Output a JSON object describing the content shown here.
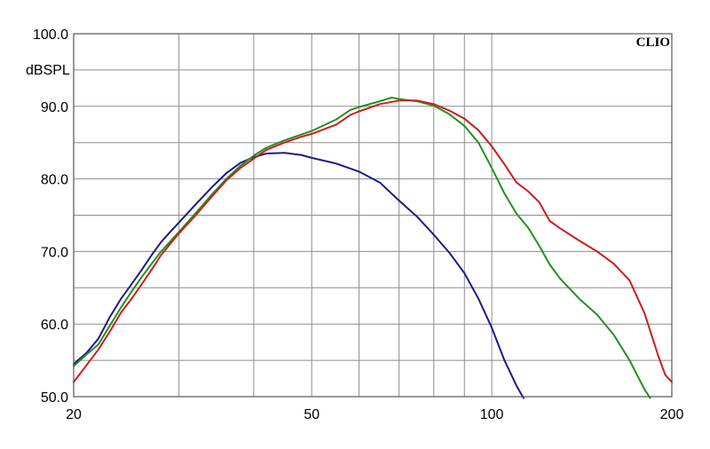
{
  "chart_data": {
    "type": "line",
    "brand": "CLIO",
    "ylabel": "dBSPL",
    "xscale": "log",
    "xlim": [
      20,
      200
    ],
    "ylim": [
      50,
      100
    ],
    "grid": true,
    "x_ticks": [
      20,
      30,
      40,
      50,
      60,
      70,
      80,
      90,
      100,
      200
    ],
    "x_tick_labels": [
      {
        "value": 20,
        "label": "20"
      },
      {
        "value": 50,
        "label": "50"
      },
      {
        "value": 100,
        "label": "100"
      },
      {
        "value": 200,
        "label": "200"
      }
    ],
    "y_tick_labels": [
      {
        "value": 100,
        "label": "100.0"
      },
      {
        "value": 90,
        "label": "90.0"
      },
      {
        "value": 80,
        "label": "80.0"
      },
      {
        "value": 70,
        "label": "70.0"
      },
      {
        "value": 60,
        "label": "60.0"
      },
      {
        "value": 50,
        "label": "50.0"
      }
    ],
    "series": [
      {
        "color": "#1c1c86",
        "points": [
          [
            20,
            54.5
          ],
          [
            21,
            56
          ],
          [
            22,
            58
          ],
          [
            23,
            61
          ],
          [
            24,
            63.5
          ],
          [
            25,
            65.5
          ],
          [
            26,
            67.5
          ],
          [
            27,
            69.5
          ],
          [
            28,
            71.3
          ],
          [
            29,
            72.7
          ],
          [
            30,
            74
          ],
          [
            32,
            76.5
          ],
          [
            34,
            78.8
          ],
          [
            36,
            80.8
          ],
          [
            38,
            82.2
          ],
          [
            40,
            83
          ],
          [
            42,
            83.5
          ],
          [
            45,
            83.6
          ],
          [
            48,
            83.3
          ],
          [
            50,
            82.9
          ],
          [
            55,
            82.1
          ],
          [
            60,
            81
          ],
          [
            65,
            79.5
          ],
          [
            70,
            77
          ],
          [
            75,
            74.8
          ],
          [
            80,
            72.3
          ],
          [
            85,
            69.8
          ],
          [
            90,
            67
          ],
          [
            95,
            63.5
          ],
          [
            100,
            59.5
          ],
          [
            105,
            55
          ],
          [
            110,
            51.5
          ],
          [
            113,
            49.8
          ]
        ]
      },
      {
        "color": "#229022",
        "points": [
          [
            20,
            54.2
          ],
          [
            21,
            55.8
          ],
          [
            22,
            57.2
          ],
          [
            23,
            59.8
          ],
          [
            24,
            62.3
          ],
          [
            25,
            64.5
          ],
          [
            26,
            66.5
          ],
          [
            27,
            68.3
          ],
          [
            28,
            70
          ],
          [
            30,
            72.7
          ],
          [
            32,
            75.3
          ],
          [
            34,
            77.8
          ],
          [
            36,
            80
          ],
          [
            38,
            81.8
          ],
          [
            40,
            83.2
          ],
          [
            42,
            84.3
          ],
          [
            45,
            85.3
          ],
          [
            48,
            86.1
          ],
          [
            50,
            86.6
          ],
          [
            55,
            88.2
          ],
          [
            58,
            89.5
          ],
          [
            60,
            89.9
          ],
          [
            65,
            90.7
          ],
          [
            68,
            91.2
          ],
          [
            70,
            91
          ],
          [
            75,
            90.7
          ],
          [
            80,
            90.1
          ],
          [
            85,
            88.9
          ],
          [
            90,
            87.3
          ],
          [
            95,
            85
          ],
          [
            100,
            81.5
          ],
          [
            105,
            78
          ],
          [
            110,
            75.2
          ],
          [
            115,
            73.3
          ],
          [
            120,
            70.8
          ],
          [
            125,
            68.2
          ],
          [
            130,
            66.3
          ],
          [
            140,
            63.5
          ],
          [
            150,
            61.3
          ],
          [
            160,
            58.5
          ],
          [
            170,
            55
          ],
          [
            180,
            51
          ],
          [
            184,
            49.8
          ]
        ]
      },
      {
        "color": "#cc1e1e",
        "points": [
          [
            20,
            52
          ],
          [
            21,
            54.3
          ],
          [
            22,
            56.5
          ],
          [
            23,
            59
          ],
          [
            24,
            61.6
          ],
          [
            25,
            63.5
          ],
          [
            26,
            65.5
          ],
          [
            27,
            67.5
          ],
          [
            28,
            69.5
          ],
          [
            30,
            72.5
          ],
          [
            32,
            75
          ],
          [
            34,
            77.5
          ],
          [
            36,
            79.8
          ],
          [
            38,
            81.5
          ],
          [
            40,
            82.8
          ],
          [
            42,
            84
          ],
          [
            45,
            85
          ],
          [
            48,
            85.8
          ],
          [
            50,
            86.2
          ],
          [
            55,
            87.5
          ],
          [
            58,
            88.8
          ],
          [
            60,
            89.3
          ],
          [
            65,
            90.3
          ],
          [
            70,
            90.8
          ],
          [
            75,
            90.8
          ],
          [
            80,
            90.3
          ],
          [
            85,
            89.4
          ],
          [
            90,
            88.3
          ],
          [
            95,
            86.7
          ],
          [
            100,
            84.5
          ],
          [
            105,
            82
          ],
          [
            110,
            79.5
          ],
          [
            115,
            78.3
          ],
          [
            120,
            76.8
          ],
          [
            125,
            74.2
          ],
          [
            130,
            73.2
          ],
          [
            140,
            71.5
          ],
          [
            150,
            70
          ],
          [
            160,
            68.3
          ],
          [
            170,
            66
          ],
          [
            180,
            61.5
          ],
          [
            190,
            55.5
          ],
          [
            195,
            53
          ],
          [
            200,
            52
          ]
        ]
      }
    ]
  }
}
